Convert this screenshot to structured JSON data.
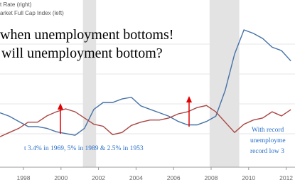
{
  "chart_data": {
    "type": "line",
    "x": [
      1996.75,
      1997.25,
      1997.75,
      1998.25,
      1998.75,
      1999.25,
      1999.75,
      2000.25,
      2000.75,
      2001.25,
      2001.75,
      2002.25,
      2002.75,
      2003.25,
      2003.75,
      2004.25,
      2004.75,
      2005.25,
      2005.75,
      2006.25,
      2006.75,
      2007.25,
      2007.75,
      2008.25,
      2008.75,
      2009.25,
      2009.75,
      2010.25,
      2010.75,
      2011.25,
      2011.75,
      2012.25
    ],
    "series": [
      {
        "name": "t Rate (right)",
        "color": "#4572a7",
        "axis": "y2",
        "values": [
          5.2,
          5.0,
          4.7,
          4.4,
          4.4,
          4.3,
          4.1,
          4.0,
          3.9,
          4.3,
          5.4,
          5.8,
          5.8,
          6.0,
          6.1,
          5.6,
          5.4,
          5.2,
          5.0,
          4.7,
          4.5,
          4.5,
          4.7,
          5.0,
          6.5,
          8.6,
          10.0,
          9.8,
          9.5,
          9.0,
          8.8,
          8.2
        ]
      },
      {
        "name": "arket Full Cap Index (left)",
        "color": "#aa4643",
        "values": [
          7500,
          8500,
          9500,
          11000,
          11000,
          12500,
          13500,
          14200,
          13500,
          12000,
          10500,
          10000,
          8000,
          8500,
          10200,
          11000,
          11500,
          11500,
          12000,
          13000,
          13500,
          14500,
          15000,
          13500,
          11000,
          8500,
          10500,
          11500,
          12000,
          13500,
          12500,
          14000
        ]
      }
    ],
    "xlim": [
      1996.75,
      2012.47
    ],
    "xticks": [
      1998,
      2000,
      2002,
      2004,
      2006,
      2008,
      2010,
      2012
    ],
    "ylim": [
      150,
      40400
    ],
    "y2lim": [
      2.05,
      11.73
    ],
    "shading": [
      [
        2001.17,
        2001.87
      ],
      [
        2007.92,
        2009.5
      ]
    ],
    "annotations": [
      "when unemployment bottoms!",
      "will unemployment bottom?",
      "t 3.4% in 1969, 5% in 1989 & 2.5% in 1953",
      "With record",
      "unemployme",
      "record low 3"
    ]
  }
}
